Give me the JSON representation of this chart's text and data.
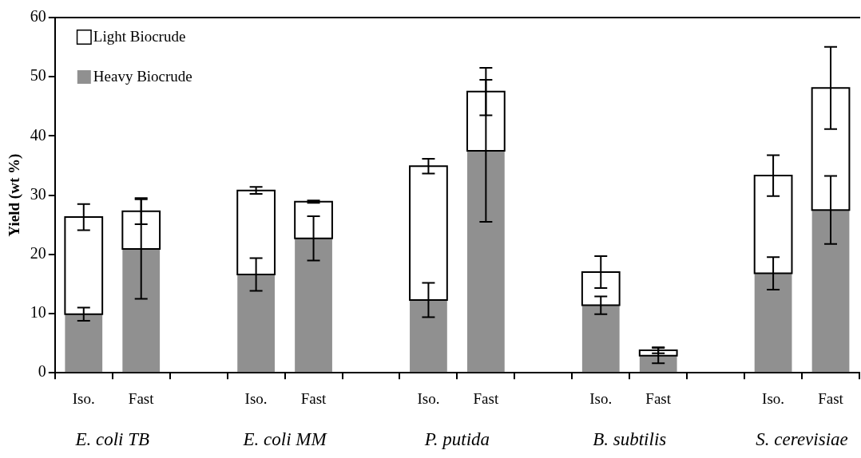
{
  "chart_data": {
    "type": "bar",
    "stacked": true,
    "ylabel": "Yield (wt %)",
    "categories": [
      "Iso.",
      "Fast",
      null,
      "Iso.",
      "Fast",
      null,
      "Iso.",
      "Fast",
      null,
      "Iso.",
      "Fast",
      null,
      "Iso.",
      "Fast"
    ],
    "series": [
      {
        "name": "Heavy Biocrude",
        "color": "#909090",
        "values": [
          9.9,
          20.9,
          null,
          16.6,
          22.7,
          null,
          12.3,
          37.5,
          null,
          11.4,
          2.9,
          null,
          16.8,
          27.5
        ],
        "errors": [
          1.1,
          8.4,
          null,
          2.75,
          3.75,
          null,
          2.9,
          12.0,
          null,
          1.5,
          1.3,
          null,
          2.75,
          5.75
        ]
      },
      {
        "name": "Light Biocrude",
        "color": "#ffffff",
        "values": [
          16.4,
          6.4,
          null,
          14.2,
          6.2,
          null,
          22.6,
          10.0,
          null,
          5.6,
          0.9,
          null,
          16.5,
          20.6
        ],
        "errors": [
          2.2,
          2.2,
          null,
          0.6,
          0.2,
          null,
          1.25,
          4.0,
          null,
          2.7,
          0.5,
          null,
          3.45,
          6.95
        ]
      }
    ],
    "ylim": [
      0,
      60
    ],
    "yticks": [
      0,
      10,
      20,
      30,
      40,
      50,
      60
    ],
    "legend": "top left",
    "annotations": [
      "E. coli TB",
      "E. coli MM",
      "P. putida",
      "B. subtilis",
      "S. cerevisiae"
    ]
  }
}
